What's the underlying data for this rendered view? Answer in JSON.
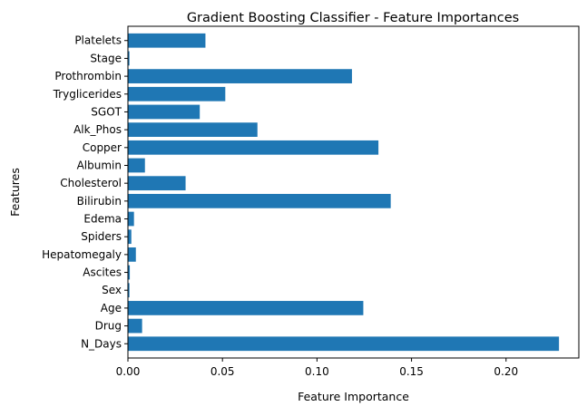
{
  "chart_data": {
    "type": "bar",
    "orientation": "horizontal",
    "title": "Gradient Boosting Classifier - Feature Importances",
    "xlabel": "Feature Importance",
    "ylabel": "Features",
    "xlim": [
      0.0,
      0.2385
    ],
    "xticks": [
      0.0,
      0.05,
      0.1,
      0.15,
      0.2
    ],
    "xtick_labels": [
      "0.00",
      "0.05",
      "0.10",
      "0.15",
      "0.20"
    ],
    "grid": false,
    "bar_color": "#1f77b4",
    "categories": [
      "N_Days",
      "Drug",
      "Age",
      "Sex",
      "Ascites",
      "Hepatomegaly",
      "Spiders",
      "Edema",
      "Bilirubin",
      "Cholesterol",
      "Albumin",
      "Copper",
      "Alk_Phos",
      "SGOT",
      "Tryglicerides",
      "Prothrombin",
      "Stage",
      "Platelets"
    ],
    "values": [
      0.228,
      0.0075,
      0.1245,
      0.0008,
      0.001,
      0.0042,
      0.0018,
      0.0032,
      0.139,
      0.0305,
      0.009,
      0.1325,
      0.0685,
      0.038,
      0.0515,
      0.1185,
      0.0008,
      0.041
    ]
  }
}
